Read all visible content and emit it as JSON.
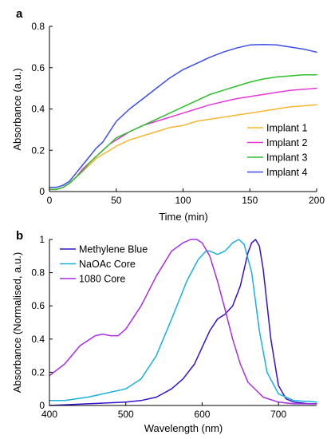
{
  "chart_data": [
    {
      "panel_label": "a",
      "type": "line",
      "xlabel": "Time (min)",
      "ylabel": "Absorbance (a.u.)",
      "xlim": [
        0,
        200
      ],
      "ylim": [
        0,
        0.8
      ],
      "xticks": [
        "0",
        "50",
        "100",
        "150",
        "200"
      ],
      "yticks": [
        "0",
        "0.2",
        "0.4",
        "0.6",
        "0.8"
      ],
      "legend_position": "bottom-right",
      "series": [
        {
          "name": "Implant 1",
          "color": "#f5b731",
          "x": [
            0,
            5,
            10,
            15,
            20,
            25,
            30,
            35,
            40,
            45,
            50,
            60,
            70,
            80,
            90,
            100,
            110,
            120,
            130,
            140,
            150,
            160,
            170,
            180,
            190,
            200
          ],
          "y": [
            0.01,
            0.01,
            0.02,
            0.04,
            0.07,
            0.1,
            0.13,
            0.16,
            0.18,
            0.2,
            0.22,
            0.25,
            0.27,
            0.29,
            0.31,
            0.32,
            0.34,
            0.35,
            0.36,
            0.37,
            0.38,
            0.39,
            0.4,
            0.41,
            0.415,
            0.42
          ]
        },
        {
          "name": "Implant 2",
          "color": "#e339d6",
          "x": [
            0,
            5,
            10,
            15,
            20,
            25,
            30,
            35,
            40,
            45,
            50,
            60,
            70,
            80,
            90,
            100,
            110,
            120,
            130,
            140,
            150,
            160,
            170,
            180,
            190,
            200
          ],
          "y": [
            0.01,
            0.01,
            0.02,
            0.04,
            0.07,
            0.11,
            0.14,
            0.17,
            0.2,
            0.23,
            0.25,
            0.29,
            0.32,
            0.34,
            0.36,
            0.38,
            0.4,
            0.42,
            0.435,
            0.45,
            0.46,
            0.47,
            0.48,
            0.49,
            0.495,
            0.5
          ]
        },
        {
          "name": "Implant 3",
          "color": "#2cbf2c",
          "x": [
            0,
            5,
            10,
            15,
            20,
            25,
            30,
            35,
            40,
            45,
            50,
            60,
            70,
            80,
            90,
            100,
            110,
            120,
            130,
            140,
            150,
            160,
            170,
            180,
            190,
            200
          ],
          "y": [
            0.01,
            0.01,
            0.02,
            0.04,
            0.07,
            0.1,
            0.14,
            0.17,
            0.2,
            0.23,
            0.26,
            0.29,
            0.32,
            0.35,
            0.38,
            0.41,
            0.44,
            0.47,
            0.49,
            0.51,
            0.53,
            0.545,
            0.555,
            0.56,
            0.565,
            0.565
          ]
        },
        {
          "name": "Implant 4",
          "color": "#3b4de8",
          "x": [
            0,
            5,
            10,
            15,
            20,
            25,
            30,
            35,
            40,
            45,
            50,
            60,
            70,
            80,
            90,
            100,
            110,
            120,
            130,
            140,
            150,
            160,
            170,
            180,
            190,
            200
          ],
          "y": [
            0.02,
            0.02,
            0.03,
            0.05,
            0.09,
            0.13,
            0.17,
            0.21,
            0.24,
            0.29,
            0.34,
            0.4,
            0.45,
            0.5,
            0.55,
            0.59,
            0.62,
            0.65,
            0.675,
            0.695,
            0.71,
            0.712,
            0.71,
            0.7,
            0.69,
            0.675
          ]
        }
      ]
    },
    {
      "panel_label": "b",
      "type": "line",
      "xlabel": "Wavelength (nm)",
      "ylabel": "Absorbance (Normalised, a.u.)",
      "xlim": [
        400,
        750
      ],
      "ylim": [
        0,
        1
      ],
      "xticks": [
        "400",
        "500",
        "600",
        "700"
      ],
      "yticks": [
        "0",
        "0.2",
        "0.4",
        "0.6",
        "0.8",
        "1"
      ],
      "legend_position": "top-left",
      "series": [
        {
          "name": "Methylene Blue",
          "color": "#3512c9",
          "x": [
            400,
            450,
            500,
            520,
            540,
            560,
            575,
            590,
            600,
            610,
            620,
            630,
            640,
            650,
            660,
            665,
            670,
            675,
            680,
            690,
            700,
            710,
            720,
            740,
            750
          ],
          "y": [
            0.0,
            0.01,
            0.02,
            0.03,
            0.05,
            0.1,
            0.16,
            0.25,
            0.35,
            0.45,
            0.52,
            0.55,
            0.6,
            0.72,
            0.92,
            0.98,
            1.0,
            0.96,
            0.82,
            0.4,
            0.12,
            0.04,
            0.02,
            0.01,
            0.01
          ]
        },
        {
          "name": "NaOAc Core",
          "color": "#1ab0d8",
          "x": [
            400,
            420,
            450,
            480,
            500,
            520,
            540,
            560,
            580,
            595,
            605,
            610,
            615,
            620,
            630,
            640,
            648,
            655,
            665,
            675,
            685,
            700,
            720,
            750
          ],
          "y": [
            0.03,
            0.03,
            0.05,
            0.08,
            0.1,
            0.16,
            0.3,
            0.52,
            0.75,
            0.88,
            0.93,
            0.93,
            0.92,
            0.91,
            0.93,
            0.98,
            1.0,
            0.97,
            0.8,
            0.45,
            0.2,
            0.07,
            0.03,
            0.02
          ]
        },
        {
          "name": "1080 Core",
          "color": "#a72fe0",
          "x": [
            400,
            420,
            440,
            460,
            470,
            480,
            490,
            500,
            520,
            540,
            560,
            575,
            585,
            593,
            600,
            610,
            620,
            630,
            640,
            650,
            660,
            680,
            700,
            720,
            750
          ],
          "y": [
            0.18,
            0.25,
            0.36,
            0.42,
            0.43,
            0.42,
            0.42,
            0.46,
            0.6,
            0.78,
            0.93,
            0.98,
            1.0,
            1.0,
            0.98,
            0.9,
            0.75,
            0.58,
            0.4,
            0.25,
            0.14,
            0.05,
            0.02,
            0.01,
            0.01
          ]
        }
      ]
    }
  ]
}
